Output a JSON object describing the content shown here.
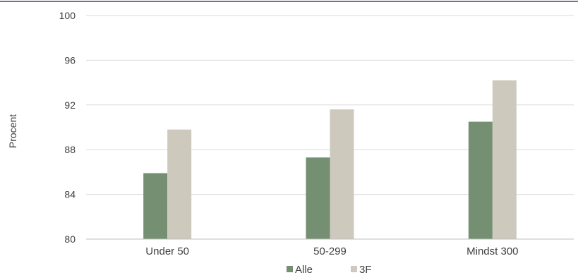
{
  "colors": {
    "top_rule": "#7b6f93",
    "gridline": "#d9d9d9",
    "axis_line": "#bfbfbf",
    "text": "#404040"
  },
  "chart_data": {
    "type": "bar",
    "title": "",
    "xlabel": "",
    "ylabel": "Procent",
    "ylim": [
      80,
      100
    ],
    "yticks": [
      80,
      84,
      88,
      92,
      96,
      100
    ],
    "grid": true,
    "legend_position": "bottom",
    "categories": [
      "Under 50",
      "50-299",
      "Mindst 300"
    ],
    "series": [
      {
        "name": "Alle",
        "color": "#748f71",
        "values": [
          85.9,
          87.3,
          90.5
        ]
      },
      {
        "name": "3F",
        "color": "#cdc9bd",
        "values": [
          89.8,
          91.6,
          94.2
        ]
      }
    ]
  }
}
